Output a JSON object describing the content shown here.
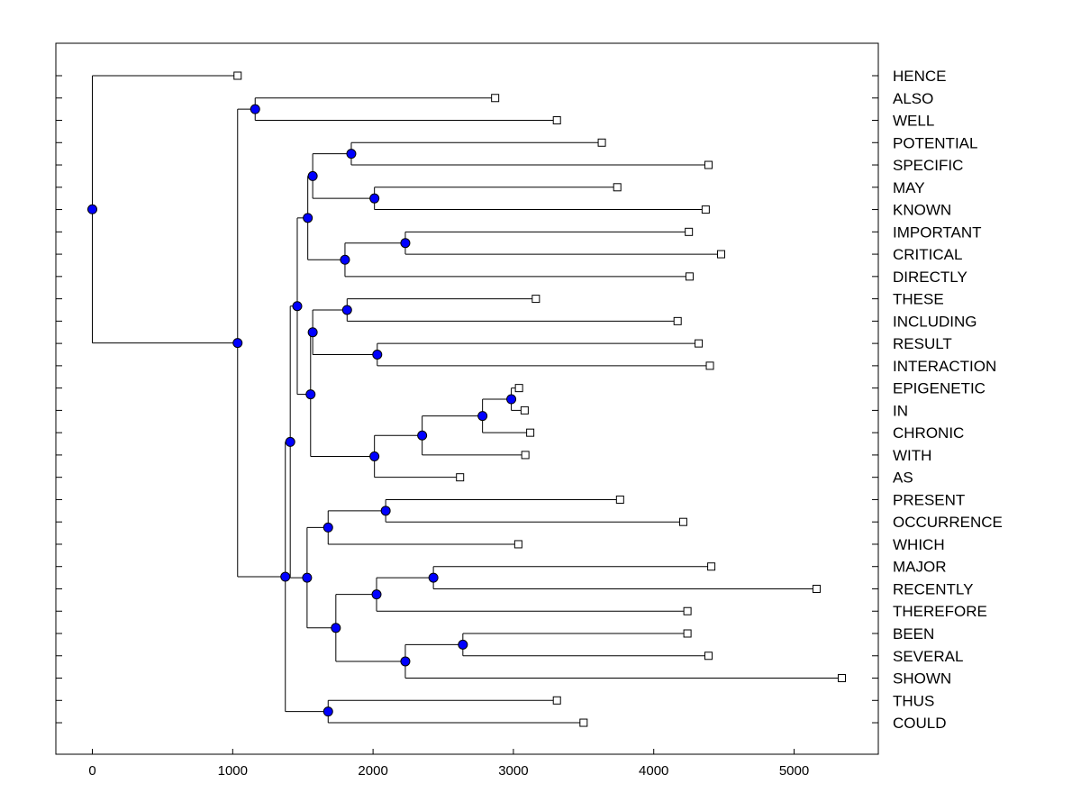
{
  "chart_data": {
    "type": "dendrogram",
    "title": "",
    "xlabel": "",
    "ylabel": "",
    "xlim": [
      -260,
      5600
    ],
    "xticks": [
      0,
      1000,
      2000,
      3000,
      4000,
      5000
    ],
    "leaves": [
      {
        "label": "HENCE",
        "x": 1035
      },
      {
        "label": "ALSO",
        "x": 2870
      },
      {
        "label": "WELL",
        "x": 3310
      },
      {
        "label": "POTENTIAL",
        "x": 3630
      },
      {
        "label": "SPECIFIC",
        "x": 4390
      },
      {
        "label": "MAY",
        "x": 3740
      },
      {
        "label": "KNOWN",
        "x": 4370
      },
      {
        "label": "IMPORTANT",
        "x": 4250
      },
      {
        "label": "CRITICAL",
        "x": 4480
      },
      {
        "label": "DIRECTLY",
        "x": 4255
      },
      {
        "label": "THESE",
        "x": 3160
      },
      {
        "label": "INCLUDING",
        "x": 4170
      },
      {
        "label": "RESULT",
        "x": 4320
      },
      {
        "label": "INTERACTION",
        "x": 4400
      },
      {
        "label": "EPIGENETIC",
        "x": 3040
      },
      {
        "label": "IN",
        "x": 3080
      },
      {
        "label": "CHRONIC",
        "x": 3120
      },
      {
        "label": "WITH",
        "x": 3085
      },
      {
        "label": "AS",
        "x": 2620
      },
      {
        "label": "PRESENT",
        "x": 3760
      },
      {
        "label": "OCCURRENCE",
        "x": 4210
      },
      {
        "label": "WHICH",
        "x": 3035
      },
      {
        "label": "MAJOR",
        "x": 4410
      },
      {
        "label": "RECENTLY",
        "x": 5160
      },
      {
        "label": "THEREFORE",
        "x": 4240
      },
      {
        "label": "BEEN",
        "x": 4240
      },
      {
        "label": "SEVERAL",
        "x": 4390
      },
      {
        "label": "SHOWN",
        "x": 5340
      },
      {
        "label": "THUS",
        "x": 3310
      },
      {
        "label": "COULD",
        "x": 3500
      }
    ],
    "merges": [
      {
        "id": "n1",
        "x": 1160,
        "children": [
          "ALSO",
          "WELL"
        ]
      },
      {
        "id": "n2",
        "x": 1845,
        "children": [
          "POTENTIAL",
          "SPECIFIC"
        ]
      },
      {
        "id": "n3",
        "x": 2010,
        "children": [
          "MAY",
          "KNOWN"
        ]
      },
      {
        "id": "n4",
        "x": 1570,
        "children": [
          "n2",
          "n3"
        ]
      },
      {
        "id": "n5",
        "x": 2230,
        "children": [
          "IMPORTANT",
          "CRITICAL"
        ]
      },
      {
        "id": "n6",
        "x": 1800,
        "children": [
          "n5",
          "DIRECTLY"
        ]
      },
      {
        "id": "n7",
        "x": 1535,
        "children": [
          "n4",
          "n6"
        ]
      },
      {
        "id": "n8",
        "x": 1815,
        "children": [
          "THESE",
          "INCLUDING"
        ]
      },
      {
        "id": "n9",
        "x": 2030,
        "children": [
          "RESULT",
          "INTERACTION"
        ]
      },
      {
        "id": "n10",
        "x": 1570,
        "children": [
          "n8",
          "n9"
        ]
      },
      {
        "id": "n11",
        "x": 2985,
        "children": [
          "EPIGENETIC",
          "IN"
        ]
      },
      {
        "id": "n12",
        "x": 2780,
        "children": [
          "n11",
          "CHRONIC"
        ]
      },
      {
        "id": "n13",
        "x": 2350,
        "children": [
          "n12",
          "WITH"
        ]
      },
      {
        "id": "n14",
        "x": 2010,
        "children": [
          "n13",
          "AS"
        ]
      },
      {
        "id": "n15",
        "x": 1555,
        "children": [
          "n10",
          "n14"
        ]
      },
      {
        "id": "n16",
        "x": 1460,
        "children": [
          "n7",
          "n15"
        ]
      },
      {
        "id": "n17",
        "x": 2090,
        "children": [
          "PRESENT",
          "OCCURRENCE"
        ]
      },
      {
        "id": "n18",
        "x": 1680,
        "children": [
          "n17",
          "WHICH"
        ]
      },
      {
        "id": "n19",
        "x": 2430,
        "children": [
          "MAJOR",
          "RECENTLY"
        ]
      },
      {
        "id": "n20",
        "x": 2025,
        "children": [
          "n19",
          "THEREFORE"
        ]
      },
      {
        "id": "n21",
        "x": 2640,
        "children": [
          "BEEN",
          "SEVERAL"
        ]
      },
      {
        "id": "n22",
        "x": 2230,
        "children": [
          "n21",
          "SHOWN"
        ]
      },
      {
        "id": "n23",
        "x": 1735,
        "children": [
          "n20",
          "n22"
        ]
      },
      {
        "id": "n24",
        "x": 1530,
        "children": [
          "n18",
          "n23"
        ]
      },
      {
        "id": "n25",
        "x": 1410,
        "children": [
          "n16",
          "n24"
        ]
      },
      {
        "id": "n26",
        "x": 1680,
        "children": [
          "THUS",
          "COULD"
        ]
      },
      {
        "id": "n27",
        "x": 1375,
        "children": [
          "n25",
          "n26"
        ]
      },
      {
        "id": "n28",
        "x": 1035,
        "children": [
          "n1",
          "n27"
        ]
      },
      {
        "id": "n29",
        "x": 0,
        "children": [
          "HENCE",
          "n28"
        ]
      }
    ],
    "colors": {
      "internal_node": "#0000ff",
      "leaf_node": "#ffffff",
      "line": "#000000",
      "background": "#ffffff"
    }
  }
}
